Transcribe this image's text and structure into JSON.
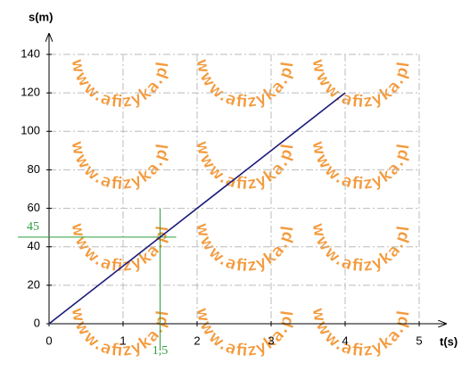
{
  "chart_data": {
    "type": "line",
    "x_label": "t(s)",
    "y_label": "s(m)",
    "x": [
      0,
      4
    ],
    "series": [
      {
        "color": "#1a1a7a",
        "values": [
          0,
          120
        ]
      }
    ],
    "xlim": [
      0,
      5
    ],
    "xticks": [
      0,
      1,
      2,
      3,
      4,
      5
    ],
    "ylim": [
      0,
      140
    ],
    "yticks": [
      0,
      20,
      40,
      60,
      80,
      100,
      120,
      140
    ],
    "grid": true,
    "guide_x": {
      "value": 1.5,
      "label": "1,5"
    },
    "guide_y": 45,
    "guide_color": "#2e9e3e",
    "watermark": "www.afizyka.pl"
  }
}
